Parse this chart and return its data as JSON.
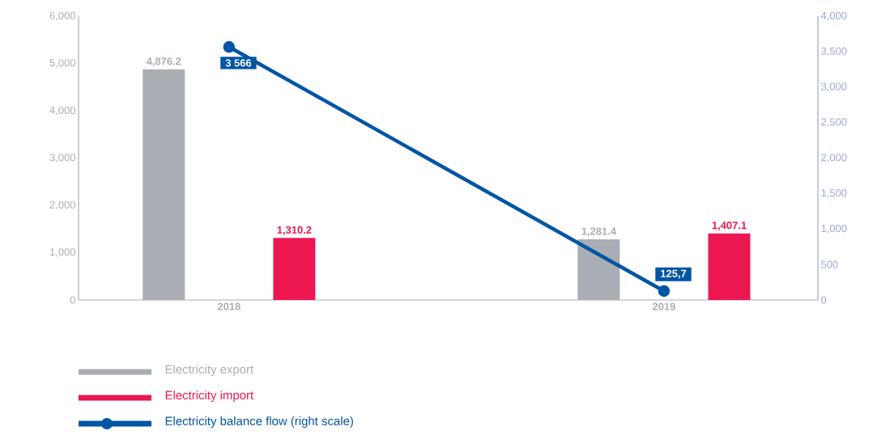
{
  "chart_data": {
    "type": "bar",
    "categories": [
      "2018",
      "2019"
    ],
    "series": [
      {
        "name": "Electricity export",
        "color": "#a9aeb4",
        "values": [
          4876.2,
          1281.4
        ],
        "value_labels": [
          "4,876.2",
          "1,281.4"
        ]
      },
      {
        "name": "Electricity import",
        "color": "#ec1651",
        "values": [
          1310.2,
          1407.1
        ],
        "value_labels": [
          "1,310.2",
          "1,407.1"
        ]
      },
      {
        "name": "Electricity balance flow (right scale)",
        "type": "line",
        "axis": "y2",
        "marker": "circle",
        "color": "#0055a5",
        "values": [
          3566,
          125.7
        ],
        "value_labels": [
          "3 566",
          "125,7"
        ]
      }
    ],
    "ylim": [
      0,
      6000
    ],
    "yticks": [
      0,
      {
        "value": 1000,
        "label": "1,000"
      },
      {
        "value": 2000,
        "label": "2,000"
      },
      {
        "value": 3000,
        "label": "3,000"
      },
      {
        "value": 4000,
        "label": "4,000"
      },
      {
        "value": 5000,
        "label": "5,000"
      },
      {
        "value": 6000,
        "label": "6,000"
      }
    ],
    "y2lim": [
      0,
      4000
    ],
    "y2ticks": [
      0,
      500,
      {
        "value": 1000,
        "label": "1,000"
      },
      {
        "value": 1500,
        "label": "1,500"
      },
      {
        "value": 2000,
        "label": "2,000"
      },
      {
        "value": 2500,
        "label": "2,500"
      },
      {
        "value": 3000,
        "label": "3,000"
      },
      {
        "value": 3500,
        "label": "3,500"
      },
      {
        "value": 4000,
        "label": "4,000"
      }
    ],
    "legend": "bottom left"
  }
}
